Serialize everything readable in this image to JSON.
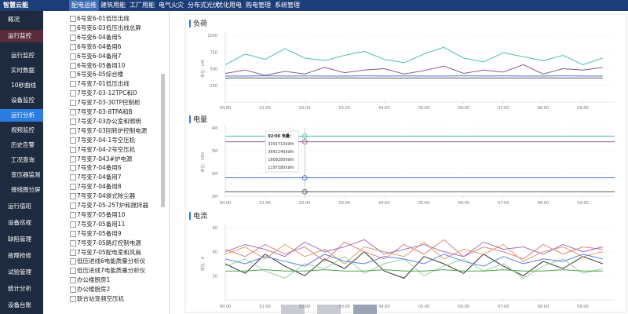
{
  "header": {
    "logo": "智慧云能",
    "nav": [
      "配电运维",
      "建筑用能",
      "工厂用能",
      "电气火灾",
      "分布式光伏",
      "优化用电",
      "购电管理",
      "系统管理"
    ],
    "active": 0
  },
  "sidebar": {
    "top": [
      "概况"
    ],
    "group": "运行监控",
    "children": [
      "运行监控",
      "实时数据",
      "10秒曲线",
      "设备监控",
      "运行分析",
      "视频监控",
      "历史告警",
      "工况查询",
      "变压器监测",
      "接线图分屏"
    ],
    "active_child": 4,
    "rest": [
      "运行值班",
      "设备巡视",
      "缺陷管理",
      "故障抢修",
      "试验管理",
      "统计分析",
      "设备台账"
    ]
  },
  "tree": [
    "6号变6-01低压出线",
    "6号变6-03低压出线总屏",
    "6号变6-04备用5",
    "6号变6-04备用6",
    "6号变6-04备用7",
    "6号变6-05备用10",
    "6号变6-05综合楼",
    "7号变7-01低压出线",
    "7号变7-03-12TPC和D",
    "7号变7-03-30TP控制柜",
    "7号变7-03-8TPA和B",
    "7号变7-03办公室和照明",
    "7号变7-03回转炉控制电源",
    "7号变7-04-1号空压机",
    "7号变7-04-2号空压机",
    "7号变7-043#炉电源",
    "7号变7-04备用6",
    "7号变7-04备用7",
    "7号变7-04备用8",
    "7号变7-04袋式除尘器",
    "7号变7-05-25T炉和搅拌器",
    "7号变7-05备用10",
    "7号变7-05备用11",
    "7号变7-05备用9",
    "7号变7-05路灯控制电源",
    "7号变7-05配电室和风扇",
    "低压进线6电能质量分析仪",
    "低压进线7电能质量分析仪",
    "办公楼厨房1",
    "办公楼厨房2",
    "联合站变频空压机"
  ],
  "chart_data": [
    {
      "type": "line",
      "title": "负荷",
      "y_label": "单位：kW",
      "xlim": [
        0,
        9.8
      ],
      "ylim": [
        0,
        1000
      ],
      "yticks": [
        250,
        500,
        750,
        1000
      ],
      "xticks": [
        {
          "value": 0,
          "label": "00:00"
        },
        {
          "value": 1,
          "label": "01:00"
        },
        {
          "value": 2,
          "label": "02:00"
        },
        {
          "value": 3,
          "label": "03:00"
        },
        {
          "value": 4,
          "label": "04:00"
        },
        {
          "value": 5,
          "label": "05:00"
        },
        {
          "value": 6,
          "label": "06:00"
        },
        {
          "value": 7,
          "label": "07:00"
        },
        {
          "value": 8,
          "label": "08:00"
        },
        {
          "value": 9,
          "label": "09:00"
        }
      ],
      "x": [
        0,
        0.5,
        1,
        1.5,
        2,
        2.5,
        3,
        3.5,
        4,
        4.5,
        5,
        5.5,
        6,
        6.5,
        7,
        7.5,
        8,
        8.5,
        9,
        9.5
      ],
      "series": [
        {
          "color": "#4dbdb0",
          "values": [
            560,
            720,
            640,
            800,
            660,
            620,
            700,
            760,
            640,
            590,
            720,
            820,
            660,
            600,
            740,
            680,
            620,
            700,
            560,
            660
          ]
        },
        {
          "color": "#8a5a86",
          "values": [
            430,
            480,
            400,
            460,
            420,
            520,
            440,
            480,
            500,
            420,
            470,
            540,
            430,
            480,
            450,
            560,
            420,
            500,
            480,
            520
          ]
        },
        {
          "color": "#4a6fd0",
          "values": [
            390,
            390,
            392,
            390,
            391,
            390,
            390,
            392,
            390,
            391,
            390,
            390,
            392,
            390,
            391,
            390,
            390,
            392,
            390,
            390
          ]
        },
        {
          "color": "#555555",
          "values": [
            360,
            362,
            360,
            361,
            360,
            360,
            362,
            360,
            361,
            360,
            360,
            362,
            360,
            361,
            360,
            360,
            362,
            360,
            361,
            360
          ]
        }
      ]
    },
    {
      "type": "line",
      "title": "电量",
      "y_label": "单位：kWh",
      "xlim": [
        0,
        9.8
      ],
      "ylim": [
        1000000,
        4000000
      ],
      "yticks": [
        {
          "value": 1000000,
          "label": "1M"
        },
        {
          "value": 2000000,
          "label": "2M"
        },
        {
          "value": 3000000,
          "label": "3M"
        },
        {
          "value": 4000000,
          "label": "4M"
        }
      ],
      "xticks": [
        {
          "value": 0,
          "label": "00:00"
        },
        {
          "value": 1,
          "label": "01:00"
        },
        {
          "value": 2,
          "label": "02:00"
        },
        {
          "value": 3,
          "label": "03:00"
        },
        {
          "value": 4,
          "label": "04:00"
        },
        {
          "value": 5,
          "label": "05:00"
        },
        {
          "value": 6,
          "label": "06:00"
        },
        {
          "value": 7,
          "label": "07:00"
        },
        {
          "value": 8,
          "label": "08:00"
        },
        {
          "value": 9,
          "label": "09:00"
        }
      ],
      "x": [
        0,
        2,
        9.8
      ],
      "tooltip": {
        "title": "02:00 电量:",
        "index": 1
      },
      "series": [
        {
          "color": "#8a5a86",
          "values": [
            3391710,
            3391710,
            3391710
          ],
          "value_labels": [
            null,
            "3391710kWh",
            null
          ]
        },
        {
          "color": "#4dbdb0",
          "values": [
            3642240,
            3642240,
            3642240
          ],
          "value_labels": [
            null,
            "3642240kWh",
            null
          ]
        },
        {
          "color": "#4a6fd0",
          "values": [
            1808280,
            1808280,
            1808280
          ],
          "value_labels": [
            null,
            "1808280kWh",
            null
          ]
        },
        {
          "color": "#555555",
          "values": [
            1197580,
            1197580,
            1197580
          ],
          "value_labels": [
            null,
            "1197580kWh",
            null
          ]
        }
      ]
    },
    {
      "type": "line",
      "title": "电流",
      "y_label": "单位：A",
      "xlim": [
        0,
        9.8
      ],
      "ylim": [
        0,
        60
      ],
      "yticks": [
        20,
        40,
        60
      ],
      "xticks": [
        {
          "value": 0,
          "label": "00:00"
        },
        {
          "value": 1,
          "label": "01:00"
        },
        {
          "value": 2,
          "label": "02:00"
        },
        {
          "value": 3,
          "label": "03:00"
        },
        {
          "value": 4,
          "label": "04:00"
        },
        {
          "value": 5,
          "label": "05:00"
        },
        {
          "value": 6,
          "label": "06:00"
        },
        {
          "value": 7,
          "label": "07:00"
        },
        {
          "value": 8,
          "label": "08:00"
        },
        {
          "value": 9,
          "label": "09:00"
        }
      ],
      "x": [
        0,
        0.5,
        1,
        1.5,
        2,
        2.5,
        3,
        3.5,
        4,
        4.5,
        5,
        5.5,
        6,
        6.5,
        7,
        7.5,
        8,
        8.5,
        9,
        9.5
      ],
      "series": [
        {
          "color": "#333333",
          "values": [
            30,
            22,
            38,
            28,
            20,
            34,
            26,
            40,
            24,
            18,
            36,
            30,
            22,
            38,
            28,
            20,
            32,
            26,
            36,
            30
          ]
        },
        {
          "color": "#e08080",
          "values": [
            42,
            36,
            46,
            38,
            44,
            32,
            48,
            40,
            34,
            46,
            38,
            50,
            36,
            44,
            40,
            34,
            46,
            38,
            44,
            42
          ]
        },
        {
          "color": "#e0a060",
          "values": [
            38,
            44,
            34,
            46,
            36,
            42,
            30,
            44,
            40,
            36,
            48,
            34,
            42,
            38,
            46,
            32,
            40,
            44,
            36,
            40
          ]
        },
        {
          "color": "#9ad0a0",
          "values": [
            28,
            34,
            24,
            18,
            30,
            26,
            36,
            22,
            30,
            34,
            20,
            28,
            34,
            24,
            30,
            18,
            28,
            34,
            22,
            26
          ]
        },
        {
          "color": "#a070c0",
          "values": [
            40,
            46,
            42,
            36,
            48,
            40,
            44,
            50,
            38,
            42,
            46,
            40,
            36,
            48,
            42,
            44,
            38,
            46,
            40,
            44
          ]
        },
        {
          "color": "#6080e0",
          "values": [
            34,
            30,
            36,
            32,
            28,
            38,
            32,
            30,
            36,
            34,
            30,
            38,
            32,
            28,
            36,
            30,
            34,
            32,
            38,
            34
          ]
        },
        {
          "color": "#50a050",
          "values": [
            24,
            24,
            25,
            24,
            24,
            25,
            24,
            24,
            25,
            24,
            24,
            25,
            24,
            24,
            25,
            24,
            24,
            25,
            24,
            24
          ]
        }
      ]
    }
  ]
}
